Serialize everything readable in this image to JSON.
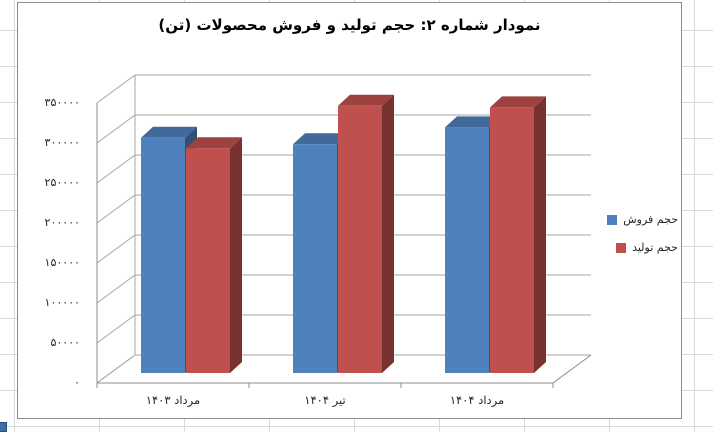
{
  "chart_data": {
    "type": "bar",
    "style": "3d-clustered-column",
    "title": "نمودار شماره ۲: حجم تولید و فروش محصولات (تن)",
    "title_color": "#000000",
    "categories": [
      "مرداد ۱۴۰۳",
      "تیر ۱۴۰۴",
      "مرداد ۱۴۰۴"
    ],
    "series": [
      {
        "name": "حجم فروش",
        "color": "#4f81bd",
        "values": [
          294000,
          286000,
          307000
        ]
      },
      {
        "name": "حجم تولید",
        "color": "#c0504d",
        "values": [
          281000,
          334000,
          332000
        ]
      }
    ],
    "ylim": [
      0,
      350000
    ],
    "ytick_step": 50000,
    "ytick_labels_top_to_bottom": [
      "۳۵۰۰۰۰",
      "۳۰۰۰۰۰",
      "۲۵۰۰۰۰",
      "۲۰۰۰۰۰",
      "۱۵۰۰۰۰",
      "۱۰۰۰۰۰",
      "۵۰۰۰۰",
      "۰"
    ],
    "grid": true,
    "legend_position": "right",
    "gridline_color": "#a6a6a6",
    "axis_line_color": "#8c8c8c"
  }
}
